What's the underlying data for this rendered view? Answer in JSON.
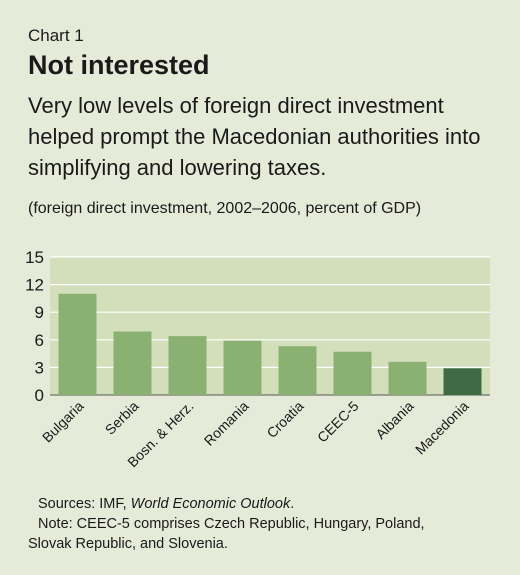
{
  "kicker": "Chart 1",
  "title": "Not interested",
  "subtitle": "Very low levels of foreign direct investment helped prompt the Macedonian authorities into simplifying and lowering taxes.",
  "units": "(foreign direct investment, 2002–2006, percent of GDP)",
  "sources": {
    "prefix": "Sources: IMF, ",
    "italic": "World Economic Outlook",
    "suffix": "."
  },
  "note": {
    "line1": "Note: CEEC-5 comprises Czech Republic, Hungary, Poland,",
    "line2": "Slovak Republic, and Slovenia."
  },
  "colors": {
    "bar": "#8bb172",
    "highlight": "#3f6a43",
    "plot_bg": "#d3deba",
    "grid": "#ffffff"
  },
  "chart_data": {
    "type": "bar",
    "categories": [
      "Bulgaria",
      "Serbia",
      "Bosn. & Herz.",
      "Romania",
      "Croatia",
      "CEEC-5",
      "Albania",
      "Macedonia"
    ],
    "values": [
      11.0,
      6.9,
      6.4,
      5.9,
      5.3,
      4.7,
      3.6,
      2.9
    ],
    "highlight": "Macedonia",
    "ylim": [
      0,
      15
    ],
    "yticks": [
      0,
      3,
      6,
      9,
      12,
      15
    ],
    "grid": true
  }
}
